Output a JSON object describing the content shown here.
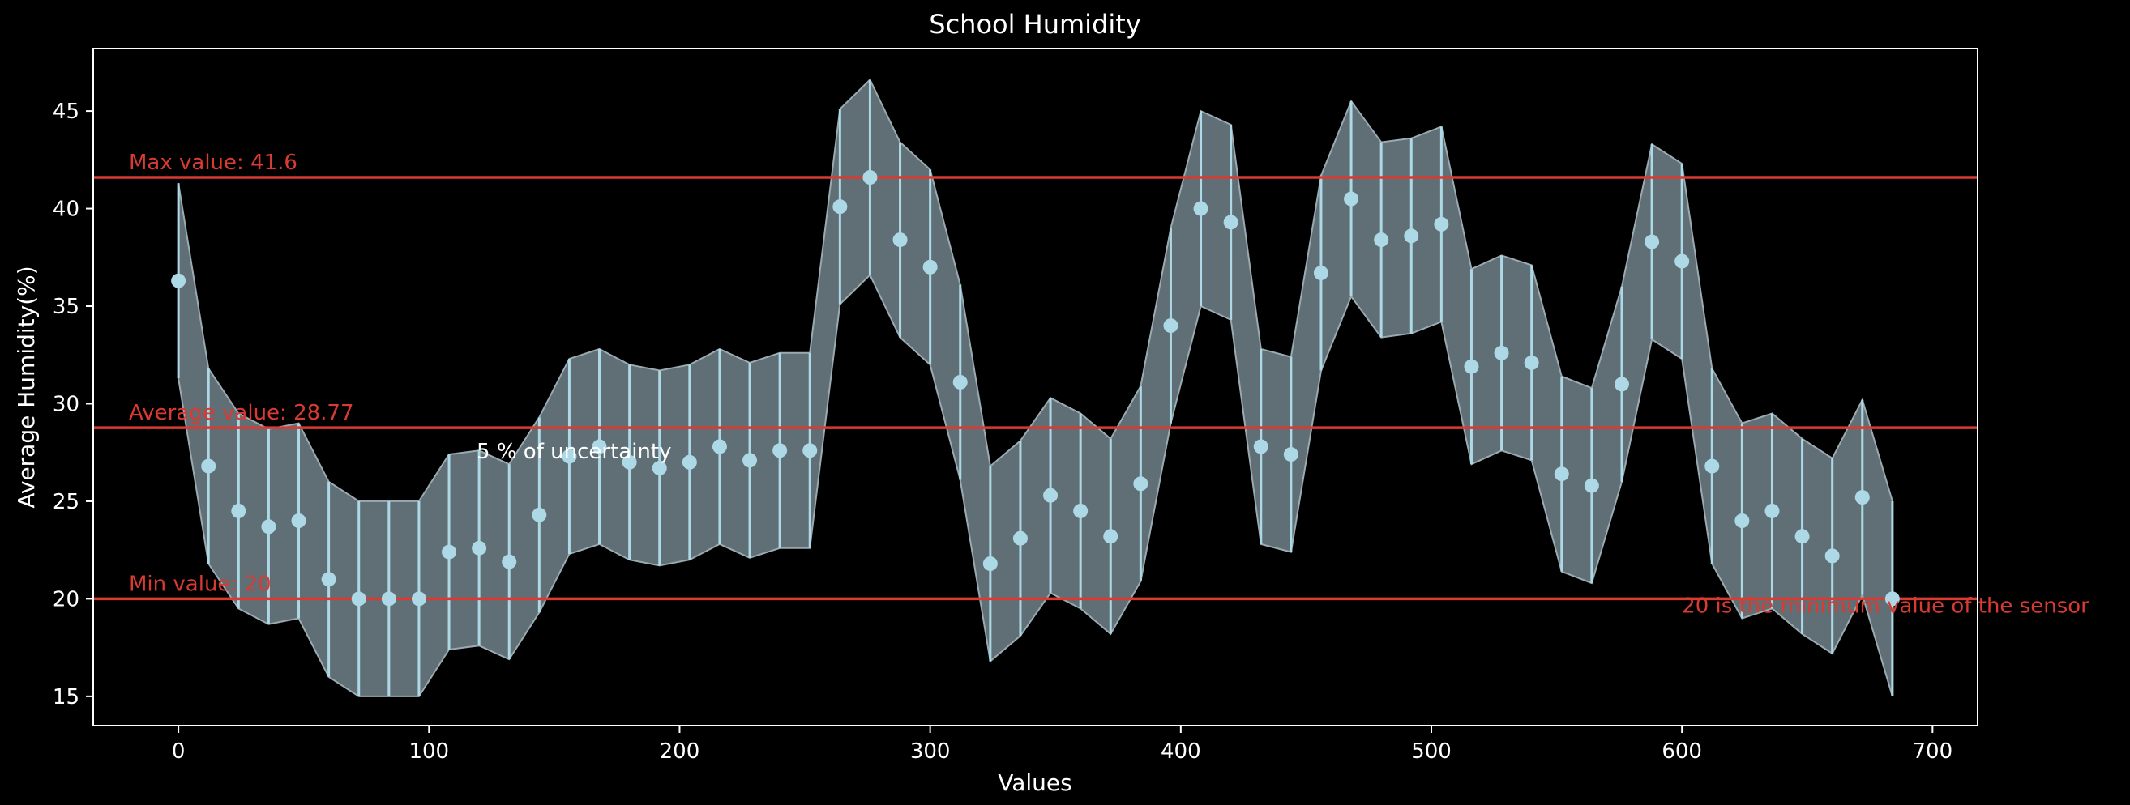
{
  "chart_data": {
    "type": "scatter",
    "title": "School Humidity",
    "xlabel": "Values",
    "ylabel": "Average Humidity(%)",
    "xlim": [
      -34,
      718
    ],
    "ylim": [
      13.5,
      48.2
    ],
    "xticks": [
      0,
      100,
      200,
      300,
      400,
      500,
      600,
      700
    ],
    "yticks": [
      15,
      20,
      25,
      30,
      35,
      40,
      45
    ],
    "grid": false,
    "band_halfwidth": 5,
    "colors": {
      "background": "#000000",
      "points": "#add8e6",
      "band": "#5f6f75",
      "lines": "#d93a32",
      "text": "#ffffff"
    },
    "series": [
      {
        "x": [
          0,
          12,
          24,
          36,
          48,
          60,
          72,
          84,
          96,
          108,
          120,
          132,
          144,
          156,
          168,
          180,
          192,
          204,
          216,
          228,
          240,
          252,
          264,
          276,
          288,
          300,
          312,
          324,
          336,
          348,
          360,
          372,
          384,
          396,
          408,
          420,
          432,
          444,
          456,
          468,
          480,
          492,
          504,
          516,
          528,
          540,
          552,
          564,
          576,
          588,
          600,
          612,
          624,
          636,
          648,
          660,
          672,
          684
        ],
        "y": [
          36.3,
          26.8,
          24.5,
          23.7,
          24.0,
          21.0,
          20.0,
          20.0,
          20.0,
          22.4,
          22.6,
          21.9,
          24.3,
          27.3,
          27.8,
          27.0,
          26.7,
          27.0,
          27.8,
          27.1,
          27.6,
          27.6,
          40.1,
          41.6,
          38.4,
          37.0,
          31.1,
          21.8,
          23.1,
          25.3,
          24.5,
          23.2,
          25.9,
          34.0,
          40.0,
          39.3,
          27.8,
          27.4,
          36.7,
          40.5,
          38.4,
          38.6,
          39.2,
          31.9,
          32.6,
          32.1,
          26.4,
          25.8,
          31.0,
          38.3,
          37.3,
          26.8,
          24.0,
          24.5,
          23.2,
          22.2,
          25.2,
          20.0
        ]
      }
    ],
    "hlines": [
      {
        "value": 41.6,
        "label": "Max value: 41.6"
      },
      {
        "value": 28.77,
        "label": "Average value: 28.77"
      },
      {
        "value": 20,
        "label": "Min value: 20"
      }
    ],
    "annotations": [
      {
        "text": "5 % of uncertainty",
        "x": 119,
        "y": 27.2
      },
      {
        "text": "20 is the minimum value of the sensor",
        "x": 600,
        "y": 19.3
      }
    ]
  }
}
